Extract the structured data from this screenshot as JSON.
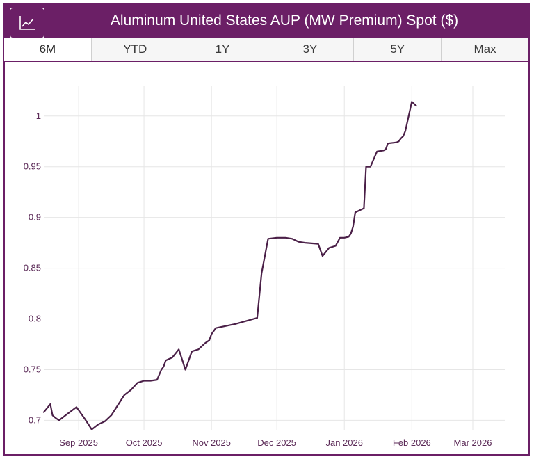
{
  "header": {
    "title": "Aluminum United States AUP (MW Premium) Spot ($)",
    "chart_icon": "line-chart-icon"
  },
  "tabs": [
    {
      "label": "6M",
      "active": true
    },
    {
      "label": "YTD",
      "active": false
    },
    {
      "label": "1Y",
      "active": false
    },
    {
      "label": "3Y",
      "active": false
    },
    {
      "label": "5Y",
      "active": false
    },
    {
      "label": "Max",
      "active": false
    }
  ],
  "colors": {
    "brand": "#6b1f66",
    "line": "#4a1f47",
    "grid": "#e6e6e6",
    "tick": "#5b2a57"
  },
  "chart_data": {
    "type": "line",
    "title": "Aluminum United States AUP (MW Premium) Spot ($)",
    "xlabel": "",
    "ylabel": "",
    "grid": true,
    "xlim": [
      -16,
      196
    ],
    "ylim": [
      0.69,
      1.03
    ],
    "yticks": [
      0.7,
      0.75,
      0.8,
      0.85,
      0.9,
      0.95,
      1
    ],
    "ytick_labels": [
      "0.7",
      "0.75",
      "0.8",
      "0.85",
      "0.9",
      "0.95",
      "1"
    ],
    "xticks": [
      0,
      30,
      61,
      91,
      122,
      153,
      181
    ],
    "xtick_labels": [
      "Sep 2025",
      "Oct 2025",
      "Nov 2025",
      "Dec 2025",
      "Jan 2026",
      "Feb 2026",
      "Mar 2026"
    ],
    "series": [
      {
        "name": "AUP (MW Premium) Spot",
        "x": [
          -16,
          -13,
          -12,
          -11,
          -9,
          -6,
          -1,
          3,
          6,
          9,
          12,
          15,
          18,
          21,
          24,
          27,
          30,
          33,
          36,
          38,
          39,
          40,
          43,
          46,
          49,
          52,
          55,
          58,
          60,
          61,
          63,
          72,
          82,
          84,
          87,
          91,
          93,
          95,
          98,
          101,
          104,
          110,
          112,
          115,
          118,
          120,
          122,
          124,
          125,
          126,
          127,
          131,
          132,
          134,
          137,
          140,
          141,
          142,
          146,
          147,
          148,
          149,
          150,
          153,
          155
        ],
        "y": [
          0.708,
          0.716,
          0.705,
          0.703,
          0.7,
          0.705,
          0.713,
          0.701,
          0.691,
          0.696,
          0.699,
          0.705,
          0.715,
          0.725,
          0.73,
          0.737,
          0.739,
          0.739,
          0.74,
          0.75,
          0.753,
          0.759,
          0.762,
          0.77,
          0.75,
          0.768,
          0.77,
          0.776,
          0.779,
          0.785,
          0.791,
          0.795,
          0.801,
          0.845,
          0.879,
          0.88,
          0.88,
          0.88,
          0.879,
          0.876,
          0.875,
          0.874,
          0.862,
          0.87,
          0.872,
          0.88,
          0.88,
          0.881,
          0.884,
          0.891,
          0.905,
          0.909,
          0.95,
          0.95,
          0.965,
          0.966,
          0.967,
          0.973,
          0.974,
          0.975,
          0.978,
          0.98,
          0.985,
          1.014,
          1.01
        ]
      }
    ]
  }
}
